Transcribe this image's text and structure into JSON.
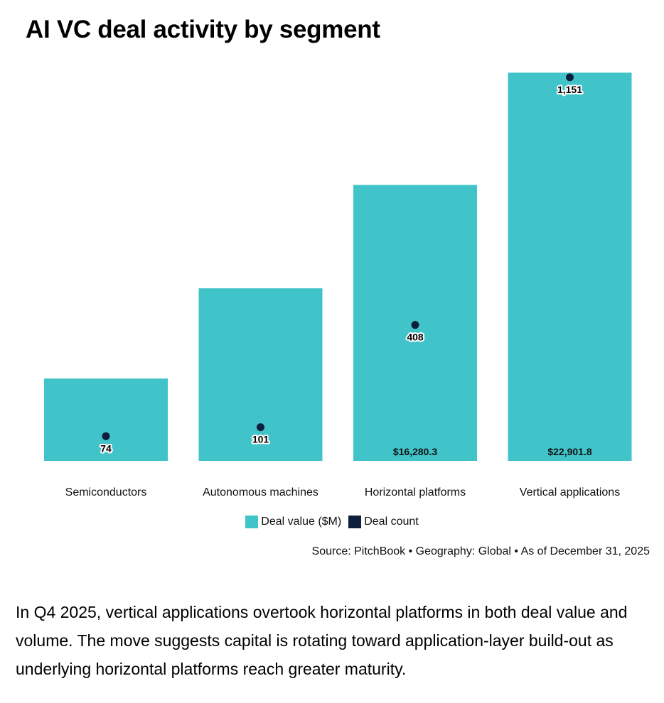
{
  "title": "AI VC deal activity by segment",
  "chart_data": {
    "type": "bar",
    "categories": [
      "Semiconductors",
      "Autonomous machines",
      "Horizontal platforms",
      "Vertical applications"
    ],
    "series": [
      {
        "name": "Deal value ($M)",
        "values": [
          4860,
          10180,
          16280.3,
          22901.8
        ],
        "labels": [
          "",
          "",
          "$16,280.3",
          "$22,901.8"
        ],
        "color": "#41c4c9"
      },
      {
        "name": "Deal count",
        "values": [
          74,
          101,
          408,
          1151
        ],
        "labels": [
          "74",
          "101",
          "408",
          "1,151"
        ],
        "color": "#0e1f3b"
      }
    ],
    "value_max": 23000,
    "count_max": 1170,
    "legend_position": "bottom",
    "grid": false
  },
  "source": "Source: PitchBook • Geography: Global • As of December 31, 2025",
  "caption": "In Q4 2025, vertical applications overtook horizontal platforms in both deal value and volume. The move suggests capital is rotating toward application-layer build-out as underlying horizontal platforms reach greater maturity."
}
